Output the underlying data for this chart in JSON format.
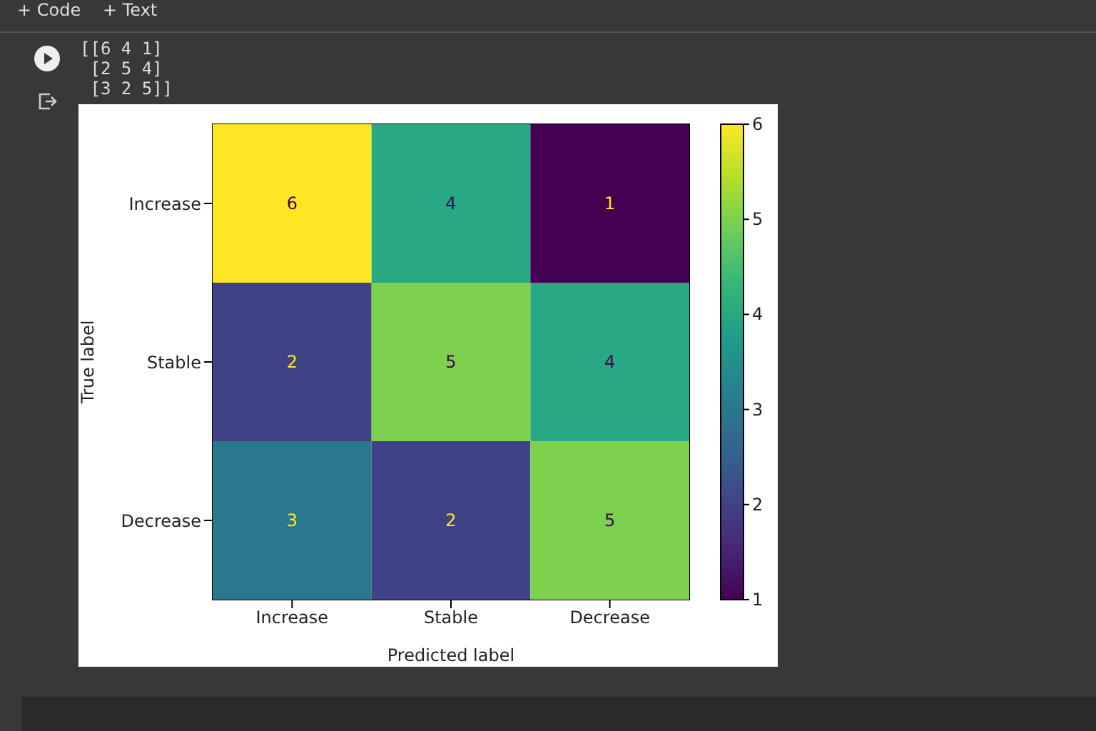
{
  "chart_data": {
    "type": "heatmap",
    "xlabel": "Predicted label",
    "ylabel": "True label",
    "categories": [
      "Increase",
      "Stable",
      "Decrease"
    ],
    "y_categories": [
      "Increase",
      "Stable",
      "Decrease"
    ],
    "cells": [
      [
        6,
        4,
        1
      ],
      [
        2,
        5,
        4
      ],
      [
        3,
        2,
        5
      ]
    ],
    "data_labels": true,
    "clim": [
      1,
      6
    ],
    "cticks": [
      1,
      2,
      3,
      4,
      5,
      6
    ],
    "annotations": [
      "+ Code",
      "+ Text",
      "[[6 4 1]",
      " [2 5 4]",
      " [3 2 5]]"
    ]
  }
}
